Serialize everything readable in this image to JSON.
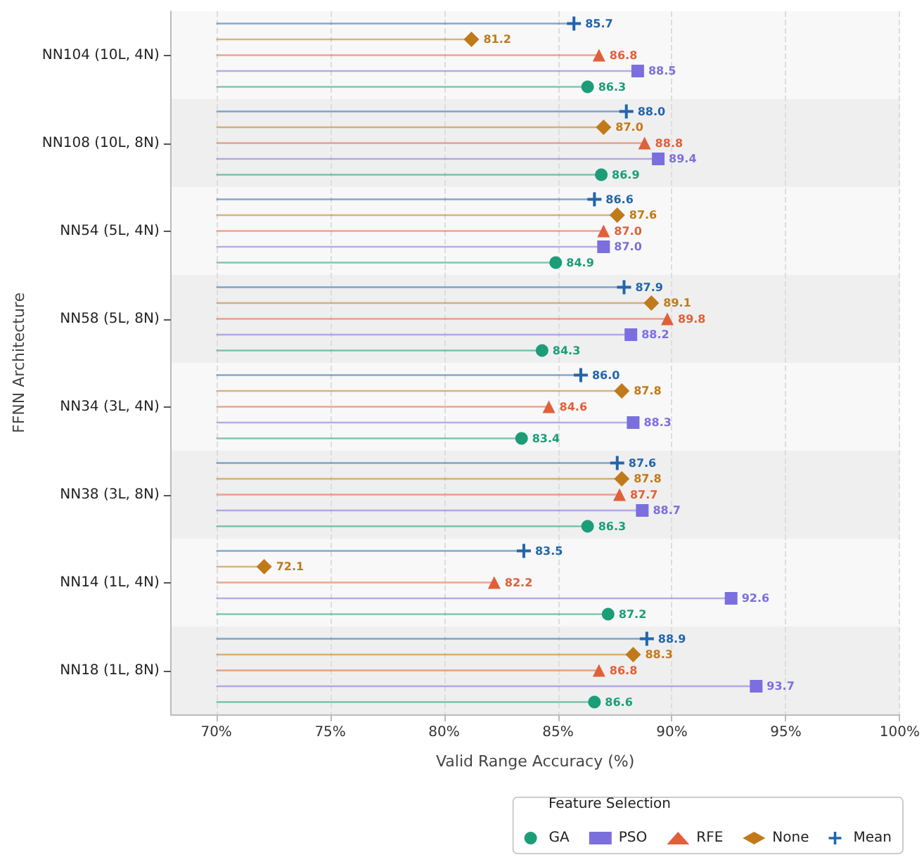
{
  "chart_data": {
    "type": "lollipop",
    "orientation": "horizontal",
    "xlabel": "Valid Range Accuracy (%)",
    "ylabel": "FFNN Architecture",
    "legend_title": "Feature Selection",
    "categories": [
      "NN104 (10L, 4N)",
      "NN108 (10L, 8N)",
      "NN54 (5L, 4N)",
      "NN58 (5L, 8N)",
      "NN34 (3L, 4N)",
      "NN38 (3L, 8N)",
      "NN14 (1L, 4N)",
      "NN18 (1L, 8N)"
    ],
    "series": [
      {
        "name": "GA",
        "color": "#1b9e77",
        "marker": "circle",
        "values": [
          86.3,
          86.9,
          84.9,
          84.3,
          83.4,
          86.3,
          87.2,
          86.6
        ],
        "value_labels": [
          "86.3",
          "86.9",
          "84.9",
          "84.3",
          "83.4",
          "86.3",
          "87.2",
          "86.6"
        ]
      },
      {
        "name": "PSO",
        "color": "#7b6fde",
        "marker": "square",
        "values": [
          88.5,
          89.4,
          87.0,
          88.2,
          88.3,
          88.7,
          92.6,
          93.7
        ],
        "value_labels": [
          "88.5",
          "89.4",
          "87.0",
          "88.2",
          "88.3",
          "88.7",
          "92.6",
          "93.7"
        ]
      },
      {
        "name": "RFE",
        "color": "#e0603a",
        "marker": "triangle",
        "values": [
          86.8,
          88.8,
          87.0,
          89.8,
          84.6,
          87.7,
          82.2,
          86.8
        ],
        "value_labels": [
          "86.8",
          "88.8",
          "87.0",
          "89.8",
          "84.6",
          "87.7",
          "82.2",
          "86.8"
        ]
      },
      {
        "name": "None",
        "color": "#c07a1a",
        "marker": "diamond",
        "values": [
          81.2,
          87.0,
          87.6,
          89.1,
          87.8,
          87.8,
          72.1,
          88.3
        ],
        "value_labels": [
          "81.2",
          "87.0",
          "87.6",
          "89.1",
          "87.8",
          "87.8",
          "72.1",
          "88.3"
        ]
      },
      {
        "name": "Mean",
        "color": "#2166ac",
        "marker": "cross",
        "values": [
          85.7,
          88.0,
          86.6,
          87.9,
          86.0,
          87.6,
          83.5,
          88.9
        ],
        "value_labels": [
          "85.7",
          "88.0",
          "86.6",
          "87.9",
          "86.0",
          "87.6",
          "83.5",
          "88.9"
        ]
      }
    ],
    "xlim": [
      68,
      100
    ],
    "xticks": [
      {
        "value": 70,
        "label": "70%"
      },
      {
        "value": 75,
        "label": "75%"
      },
      {
        "value": 80,
        "label": "80%"
      },
      {
        "value": 85,
        "label": "85%"
      },
      {
        "value": 90,
        "label": "90%"
      },
      {
        "value": 95,
        "label": "95%"
      },
      {
        "value": 100,
        "label": "100%"
      }
    ],
    "grid": "x",
    "legend": "bottom right"
  }
}
